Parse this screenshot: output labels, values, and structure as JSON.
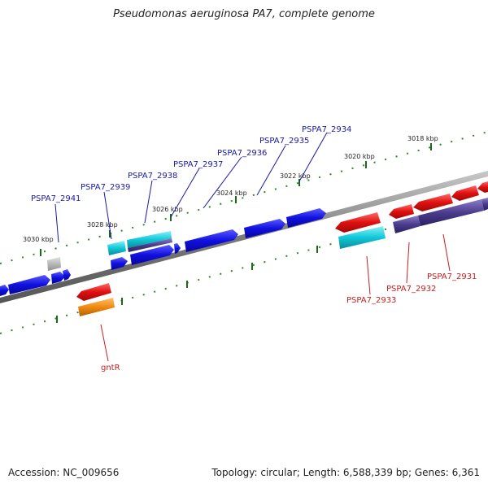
{
  "title": "Pseudomonas aeruginosa PA7, complete genome",
  "footer": {
    "accession": "Accession: NC_009656",
    "topology": "Topology: circular; Length: 6,588,339 bp; Genes: 6,361"
  },
  "kbp_labels": [
    "3018 kbp",
    "3020 kbp",
    "3022 kbp",
    "3024 kbp",
    "3026 kbp",
    "3028 kbp",
    "3030 kbp"
  ],
  "gene_labels": {
    "forward": [
      "PSPA7_2934",
      "PSPA7_2935",
      "PSPA7_2936",
      "PSPA7_2937",
      "PSPA7_2938",
      "PSPA7_2939",
      "PSPA7_2941"
    ],
    "reverse": [
      "PSPA7_2931",
      "PSPA7_2932",
      "PSPA7_2933",
      "gntR"
    ]
  },
  "colors": {
    "forward_gene": "#1010e0",
    "reverse_gene": "#e01010",
    "cyan_gene": "#10c8d8",
    "purple_gene": "#4a3c8c",
    "orange_gene": "#f08a10",
    "gray_gene": "#b0b0b0",
    "label_forward": "#1a1aa6",
    "label_reverse": "#c81e1e",
    "ruler": "#2a8a2a"
  }
}
